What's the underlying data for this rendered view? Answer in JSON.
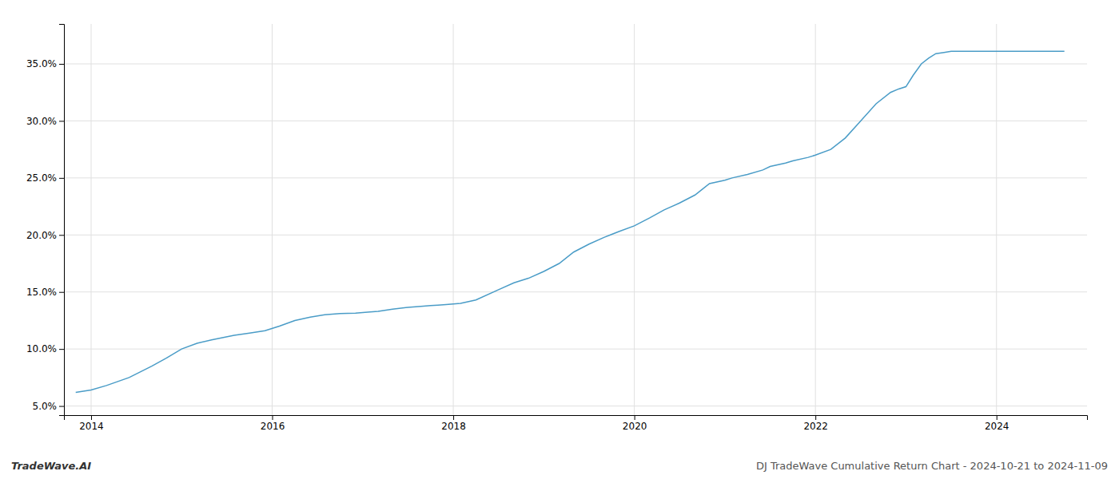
{
  "chart_data": {
    "type": "line",
    "x": [
      2013.83,
      2014.0,
      2014.17,
      2014.42,
      2014.67,
      2014.83,
      2015.0,
      2015.17,
      2015.33,
      2015.58,
      2015.75,
      2015.92,
      2016.08,
      2016.25,
      2016.42,
      2016.58,
      2016.75,
      2016.92,
      2017.0,
      2017.08,
      2017.17,
      2017.33,
      2017.5,
      2017.67,
      2017.75,
      2017.83,
      2017.92,
      2018.0,
      2018.08,
      2018.25,
      2018.5,
      2018.67,
      2018.83,
      2019.0,
      2019.17,
      2019.33,
      2019.5,
      2019.67,
      2019.83,
      2020.0,
      2020.17,
      2020.33,
      2020.5,
      2020.67,
      2020.75,
      2020.83,
      2021.0,
      2021.08,
      2021.25,
      2021.42,
      2021.5,
      2021.67,
      2021.75,
      2021.92,
      2022.0,
      2022.17,
      2022.33,
      2022.5,
      2022.67,
      2022.83,
      2022.92,
      2023.0,
      2023.08,
      2023.17,
      2023.25,
      2023.33,
      2023.42,
      2023.5,
      2023.58,
      2023.67,
      2023.75,
      2023.83,
      2024.0,
      2024.17,
      2024.5,
      2024.75
    ],
    "values": [
      6.2,
      6.4,
      6.8,
      7.5,
      8.5,
      9.2,
      10.0,
      10.5,
      10.8,
      11.2,
      11.4,
      11.6,
      12.0,
      12.5,
      12.8,
      13.0,
      13.1,
      13.15,
      13.2,
      13.25,
      13.3,
      13.5,
      13.65,
      13.75,
      13.8,
      13.85,
      13.9,
      13.95,
      14.0,
      14.3,
      15.2,
      15.8,
      16.2,
      16.8,
      17.5,
      18.5,
      19.2,
      19.8,
      20.3,
      20.8,
      21.5,
      22.2,
      22.8,
      23.5,
      24.0,
      24.5,
      24.8,
      25.0,
      25.3,
      25.7,
      26.0,
      26.3,
      26.5,
      26.8,
      27.0,
      27.5,
      28.5,
      30.0,
      31.5,
      32.5,
      32.8,
      33.0,
      34.0,
      35.0,
      35.5,
      35.9,
      36.0,
      36.1,
      36.1,
      36.1,
      36.1,
      36.1,
      36.1,
      36.1,
      36.1,
      36.1
    ],
    "color": "#4a9cc7",
    "xlim": [
      2013.7,
      2025.0
    ],
    "xticks": [
      2014,
      2016,
      2018,
      2020,
      2022,
      2024
    ],
    "ylim": [
      4.2,
      38.5
    ],
    "yticks": [
      {
        "value": 5.0,
        "label": "5.0%"
      },
      {
        "value": 10.0,
        "label": "10.0%"
      },
      {
        "value": 15.0,
        "label": "15.0%"
      },
      {
        "value": 20.0,
        "label": "20.0%"
      },
      {
        "value": 25.0,
        "label": "25.0%"
      },
      {
        "value": 30.0,
        "label": "30.0%"
      },
      {
        "value": 35.0,
        "label": "35.0%"
      }
    ],
    "grid": true,
    "annotations": [
      "TradeWave.AI",
      "DJ TradeWave Cumulative Return Chart - 2024-10-21 to 2024-11-09"
    ]
  }
}
